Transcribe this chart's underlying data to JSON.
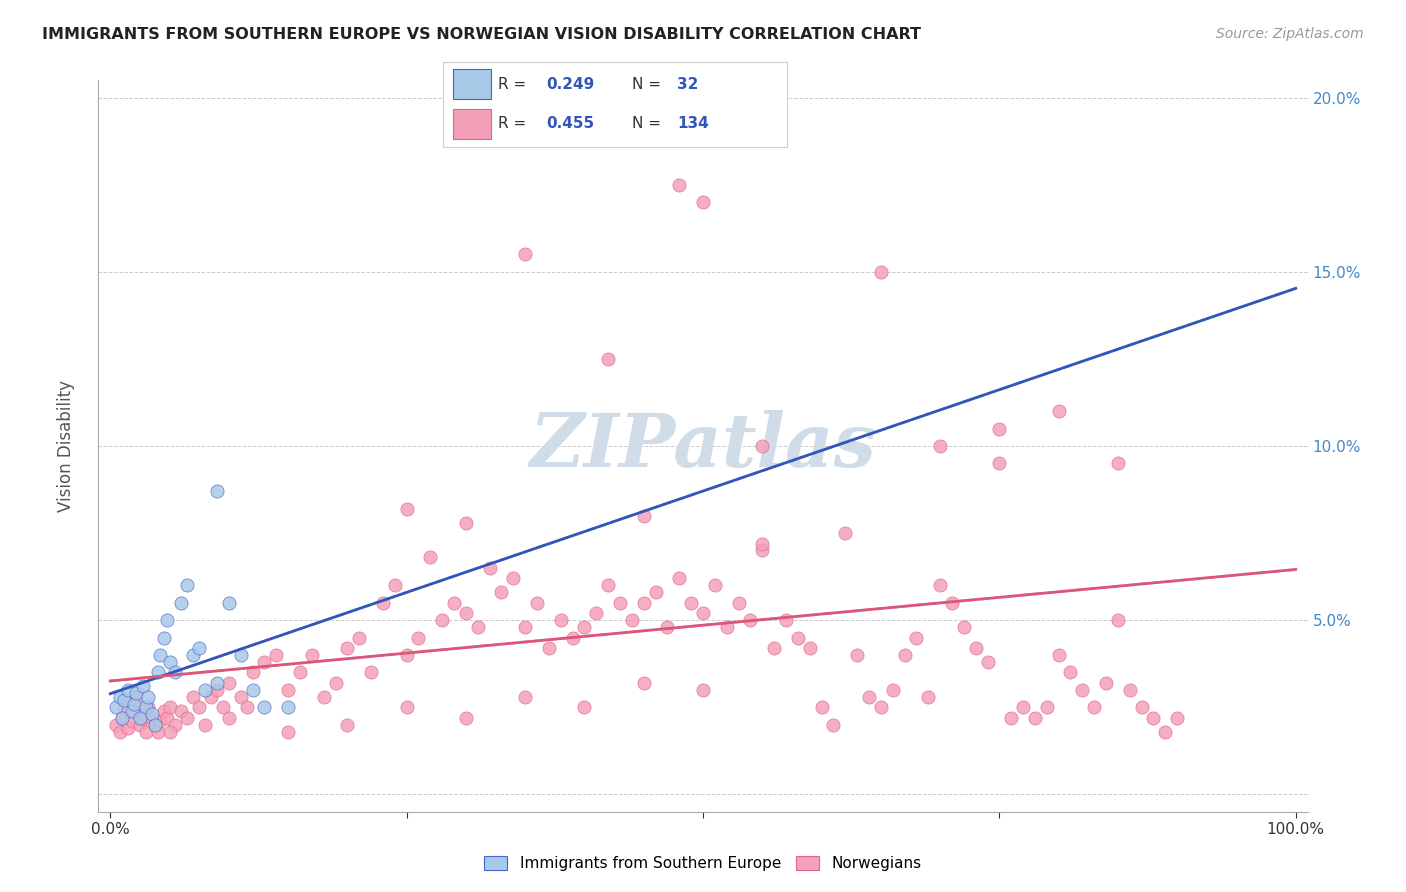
{
  "title": "IMMIGRANTS FROM SOUTHERN EUROPE VS NORWEGIAN VISION DISABILITY CORRELATION CHART",
  "source": "Source: ZipAtlas.com",
  "ylabel": "Vision Disability",
  "blue_R": 0.249,
  "blue_N": 32,
  "pink_R": 0.455,
  "pink_N": 134,
  "blue_color": "#a8c8e8",
  "pink_color": "#f4a0b8",
  "blue_edge_color": "#4466cc",
  "pink_edge_color": "#dd6688",
  "blue_line_color": "#3355bb",
  "pink_line_color": "#dd5577",
  "blue_dash_color": "#88bbdd",
  "pink_dash_color": "#ccaabb",
  "legend_label_blue": "Immigrants from Southern Europe",
  "legend_label_pink": "Norwegians",
  "stat_color": "#3355bb",
  "watermark_color": "#d0dce8",
  "blue_x": [
    0.005,
    0.008,
    0.01,
    0.012,
    0.015,
    0.018,
    0.02,
    0.022,
    0.025,
    0.028,
    0.03,
    0.032,
    0.035,
    0.038,
    0.04,
    0.042,
    0.045,
    0.048,
    0.05,
    0.055,
    0.06,
    0.065,
    0.07,
    0.075,
    0.08,
    0.09,
    0.1,
    0.11,
    0.12,
    0.13,
    0.15,
    0.09
  ],
  "blue_y": [
    0.025,
    0.028,
    0.022,
    0.027,
    0.03,
    0.024,
    0.026,
    0.029,
    0.022,
    0.031,
    0.025,
    0.028,
    0.023,
    0.02,
    0.035,
    0.04,
    0.045,
    0.05,
    0.038,
    0.035,
    0.055,
    0.06,
    0.04,
    0.042,
    0.03,
    0.032,
    0.055,
    0.04,
    0.03,
    0.025,
    0.025,
    0.087
  ],
  "pink_x": [
    0.005,
    0.008,
    0.01,
    0.012,
    0.015,
    0.018,
    0.02,
    0.022,
    0.025,
    0.028,
    0.03,
    0.032,
    0.035,
    0.038,
    0.04,
    0.042,
    0.045,
    0.048,
    0.05,
    0.055,
    0.06,
    0.065,
    0.07,
    0.075,
    0.08,
    0.085,
    0.09,
    0.095,
    0.1,
    0.11,
    0.115,
    0.12,
    0.13,
    0.14,
    0.15,
    0.16,
    0.17,
    0.18,
    0.19,
    0.2,
    0.21,
    0.22,
    0.23,
    0.24,
    0.25,
    0.26,
    0.27,
    0.28,
    0.29,
    0.3,
    0.31,
    0.32,
    0.33,
    0.34,
    0.35,
    0.36,
    0.37,
    0.38,
    0.39,
    0.4,
    0.41,
    0.42,
    0.43,
    0.44,
    0.45,
    0.46,
    0.47,
    0.48,
    0.49,
    0.5,
    0.51,
    0.52,
    0.53,
    0.54,
    0.55,
    0.56,
    0.57,
    0.58,
    0.59,
    0.6,
    0.61,
    0.62,
    0.63,
    0.64,
    0.65,
    0.66,
    0.67,
    0.68,
    0.69,
    0.7,
    0.71,
    0.72,
    0.73,
    0.74,
    0.75,
    0.76,
    0.77,
    0.78,
    0.79,
    0.8,
    0.81,
    0.82,
    0.83,
    0.84,
    0.85,
    0.86,
    0.87,
    0.88,
    0.89,
    0.9,
    0.35,
    0.42,
    0.48,
    0.5,
    0.55,
    0.65,
    0.7,
    0.75,
    0.8,
    0.85,
    0.45,
    0.55,
    0.3,
    0.25,
    0.05,
    0.1,
    0.15,
    0.2,
    0.25,
    0.3,
    0.35,
    0.4,
    0.45,
    0.5
  ],
  "pink_y": [
    0.02,
    0.018,
    0.022,
    0.025,
    0.019,
    0.021,
    0.024,
    0.028,
    0.02,
    0.022,
    0.018,
    0.025,
    0.022,
    0.02,
    0.018,
    0.021,
    0.024,
    0.022,
    0.025,
    0.02,
    0.024,
    0.022,
    0.028,
    0.025,
    0.02,
    0.028,
    0.03,
    0.025,
    0.032,
    0.028,
    0.025,
    0.035,
    0.038,
    0.04,
    0.03,
    0.035,
    0.04,
    0.028,
    0.032,
    0.042,
    0.045,
    0.035,
    0.055,
    0.06,
    0.04,
    0.045,
    0.068,
    0.05,
    0.055,
    0.052,
    0.048,
    0.065,
    0.058,
    0.062,
    0.048,
    0.055,
    0.042,
    0.05,
    0.045,
    0.048,
    0.052,
    0.06,
    0.055,
    0.05,
    0.055,
    0.058,
    0.048,
    0.062,
    0.055,
    0.052,
    0.06,
    0.048,
    0.055,
    0.05,
    0.07,
    0.042,
    0.05,
    0.045,
    0.042,
    0.025,
    0.02,
    0.075,
    0.04,
    0.028,
    0.025,
    0.03,
    0.04,
    0.045,
    0.028,
    0.06,
    0.055,
    0.048,
    0.042,
    0.038,
    0.105,
    0.022,
    0.025,
    0.022,
    0.025,
    0.04,
    0.035,
    0.03,
    0.025,
    0.032,
    0.05,
    0.03,
    0.025,
    0.022,
    0.018,
    0.022,
    0.155,
    0.125,
    0.175,
    0.17,
    0.1,
    0.15,
    0.1,
    0.095,
    0.11,
    0.095,
    0.08,
    0.072,
    0.078,
    0.082,
    0.018,
    0.022,
    0.018,
    0.02,
    0.025,
    0.022,
    0.028,
    0.025,
    0.032,
    0.03
  ]
}
